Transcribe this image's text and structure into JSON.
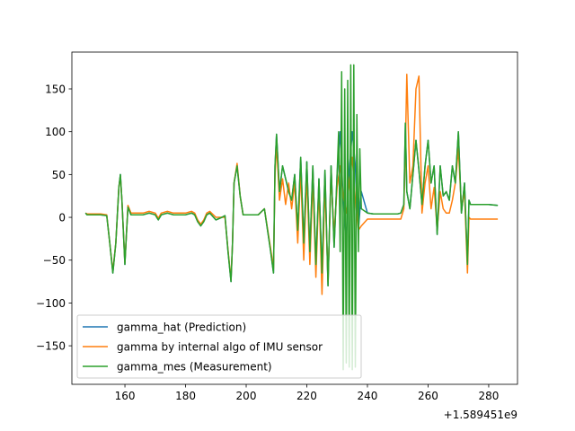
{
  "chart_data": {
    "type": "line",
    "title": "",
    "xlabel": "",
    "ylabel": "",
    "x_offset_label": "+1.589451e9",
    "xlim": [
      142.5,
      289.5
    ],
    "ylim": [
      -195,
      193
    ],
    "xticks": [
      160,
      180,
      200,
      220,
      240,
      260,
      280
    ],
    "yticks": [
      -150,
      -100,
      -50,
      0,
      50,
      100,
      150
    ],
    "xtick_labels": [
      "160",
      "180",
      "200",
      "220",
      "240",
      "260",
      "280"
    ],
    "ytick_labels": [
      "−150",
      "−100",
      "−50",
      "0",
      "50",
      "100",
      "150"
    ],
    "legend_position": "lower-left",
    "series": [
      {
        "name": "gamma_hat (Prediction)",
        "color": "#1f77b4",
        "x": [
          147,
          147.5,
          148,
          150,
          152,
          154,
          155,
          156,
          157,
          158,
          158.5,
          159,
          160,
          160.5,
          161,
          162,
          163,
          164,
          166,
          168,
          170,
          171,
          172,
          174,
          176,
          178,
          180,
          182,
          183,
          184,
          185,
          186,
          187,
          188,
          190,
          192,
          193,
          194,
          195,
          195.5,
          196,
          197,
          198,
          199,
          200,
          202,
          204,
          206,
          208,
          209,
          209.5,
          210,
          211,
          212,
          213,
          214,
          215,
          216,
          217,
          218,
          219,
          220,
          221,
          222,
          223,
          224,
          225,
          226,
          227,
          228,
          229,
          230,
          231,
          232,
          233,
          234,
          235,
          236,
          237,
          238,
          240,
          242,
          244,
          246,
          248,
          250,
          251,
          252,
          252.5,
          253,
          254,
          255,
          256,
          257,
          258,
          259,
          260,
          261,
          262,
          263,
          264,
          265,
          266,
          267,
          268,
          269,
          270,
          271,
          272,
          273,
          273.5,
          274,
          276,
          278,
          280,
          283
        ],
        "y": [
          5,
          3,
          3,
          3,
          3,
          2,
          -30,
          -65,
          -30,
          35,
          50,
          20,
          -55,
          -20,
          12,
          3,
          3,
          3,
          3,
          5,
          3,
          -3,
          3,
          5,
          3,
          3,
          3,
          5,
          3,
          -5,
          -10,
          -5,
          3,
          5,
          -3,
          0,
          2,
          -40,
          -75,
          -30,
          40,
          60,
          25,
          3,
          3,
          3,
          3,
          10,
          -38,
          -65,
          60,
          97,
          30,
          60,
          45,
          30,
          20,
          50,
          -15,
          70,
          -30,
          65,
          -40,
          60,
          -55,
          45,
          -65,
          55,
          -80,
          60,
          -35,
          50,
          100,
          20,
          -25,
          55,
          100,
          60,
          -15,
          30,
          5,
          4,
          4,
          4,
          4,
          4,
          5,
          15,
          110,
          30,
          10,
          50,
          90,
          55,
          15,
          60,
          90,
          40,
          60,
          -20,
          60,
          25,
          30,
          20,
          60,
          40,
          100,
          5,
          40,
          -55,
          20,
          15,
          15,
          15,
          15,
          14
        ]
      },
      {
        "name": "gamma by internal algo of IMU sensor",
        "color": "#ff7f0e",
        "x": [
          147,
          147.5,
          148,
          150,
          152,
          154,
          155,
          156,
          157,
          158,
          158.5,
          159,
          160,
          160.5,
          161,
          162,
          163,
          164,
          166,
          168,
          170,
          171,
          172,
          174,
          176,
          178,
          180,
          182,
          183,
          184,
          185,
          186,
          187,
          188,
          190,
          192,
          193,
          194,
          195,
          195.5,
          196,
          197,
          198,
          199,
          200,
          202,
          204,
          206,
          208,
          209,
          209.5,
          210,
          211,
          212,
          213,
          214,
          215,
          216,
          217,
          218,
          219,
          220,
          221,
          222,
          223,
          224,
          225,
          226,
          227,
          228,
          229,
          230,
          231,
          232,
          233,
          234,
          235,
          236,
          237,
          238,
          240,
          242,
          244,
          246,
          248,
          250,
          251,
          252,
          252.5,
          253,
          254,
          255,
          256,
          257,
          258,
          259,
          260,
          261,
          262,
          263,
          264,
          265,
          266,
          267,
          268,
          269,
          270,
          271,
          272,
          273,
          273.5,
          274,
          276,
          278,
          280,
          283
        ],
        "y": [
          5,
          4,
          4,
          4,
          4,
          3,
          -30,
          -63,
          -30,
          35,
          48,
          20,
          -53,
          -20,
          14,
          5,
          5,
          5,
          5,
          7,
          5,
          -1,
          5,
          7,
          5,
          5,
          5,
          7,
          5,
          -3,
          -8,
          -3,
          5,
          7,
          0,
          0,
          0,
          -38,
          -73,
          -30,
          40,
          63,
          25,
          3,
          3,
          3,
          3,
          10,
          -35,
          -60,
          50,
          85,
          20,
          45,
          15,
          40,
          10,
          40,
          -30,
          55,
          -50,
          50,
          -55,
          45,
          -70,
          35,
          -90,
          40,
          -75,
          50,
          -20,
          35,
          60,
          25,
          5,
          40,
          70,
          20,
          -15,
          -10,
          -2,
          -2,
          -2,
          -2,
          -2,
          -2,
          -2,
          10,
          80,
          167,
          40,
          60,
          150,
          165,
          5,
          40,
          60,
          10,
          35,
          -15,
          30,
          10,
          5,
          5,
          20,
          40,
          80,
          10,
          30,
          -65,
          0,
          -2,
          -2,
          -2,
          -2,
          -2
        ]
      },
      {
        "name": "gamma_mes (Measurement)",
        "color": "#2ca02c",
        "x": [
          147,
          147.5,
          148,
          150,
          152,
          154,
          155,
          156,
          157,
          158,
          158.5,
          159,
          160,
          160.5,
          161,
          162,
          163,
          164,
          166,
          168,
          170,
          171,
          172,
          174,
          176,
          178,
          180,
          182,
          183,
          184,
          185,
          186,
          187,
          188,
          190,
          192,
          193,
          194,
          195,
          195.5,
          196,
          197,
          198,
          199,
          200,
          202,
          204,
          206,
          208,
          209,
          209.5,
          210,
          211,
          212,
          213,
          214,
          215,
          216,
          217,
          218,
          219,
          220,
          221,
          222,
          223,
          224,
          225,
          226,
          227,
          228,
          229,
          230,
          230.5,
          231,
          231.5,
          232,
          232.5,
          233,
          233.5,
          234,
          234.5,
          235,
          235.5,
          236,
          236.5,
          237,
          237.5,
          238,
          240,
          242,
          244,
          246,
          248,
          250,
          251,
          252,
          252.5,
          253,
          254,
          255,
          256,
          257,
          258,
          259,
          260,
          261,
          262,
          263,
          264,
          265,
          266,
          267,
          268,
          269,
          270,
          271,
          272,
          273,
          273.5,
          274,
          276,
          278,
          280,
          283
        ],
        "y": [
          5,
          3,
          3,
          3,
          3,
          2,
          -30,
          -65,
          -30,
          35,
          50,
          20,
          -55,
          -20,
          12,
          3,
          3,
          3,
          3,
          5,
          3,
          -3,
          3,
          5,
          3,
          3,
          3,
          5,
          3,
          -5,
          -10,
          -5,
          3,
          5,
          -3,
          0,
          2,
          -40,
          -75,
          -30,
          40,
          60,
          25,
          3,
          3,
          3,
          3,
          10,
          -38,
          -65,
          60,
          97,
          30,
          60,
          45,
          30,
          20,
          50,
          -15,
          70,
          -30,
          65,
          -40,
          60,
          -55,
          45,
          -65,
          55,
          -80,
          60,
          -35,
          50,
          100,
          -40,
          170,
          -178,
          150,
          -170,
          160,
          -175,
          178,
          -178,
          178,
          -175,
          120,
          -40,
          80,
          10,
          5,
          4,
          4,
          4,
          4,
          4,
          5,
          15,
          110,
          30,
          10,
          50,
          90,
          55,
          15,
          60,
          90,
          40,
          60,
          -20,
          60,
          25,
          30,
          20,
          60,
          40,
          100,
          5,
          40,
          -55,
          20,
          15,
          15,
          15,
          15,
          14
        ]
      }
    ]
  }
}
